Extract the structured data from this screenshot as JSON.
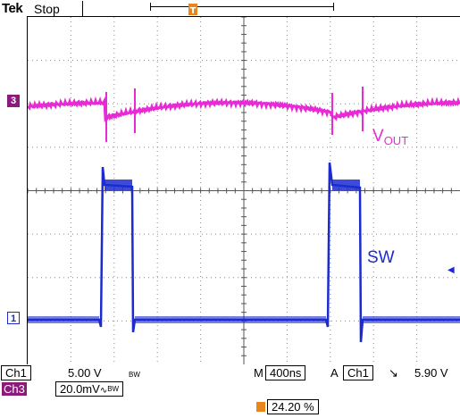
{
  "topbar": {
    "brand": "Tek",
    "state": "Stop",
    "trigger_marker": "T"
  },
  "traces": {
    "ch3_label": "V",
    "ch3_label_sub": "OUT",
    "ch1_label": "SW",
    "ch3_marker": "3",
    "ch1_marker": "1",
    "ch3_color": "#e82ad6",
    "ch1_color": "#1b2bd0"
  },
  "status": {
    "ch1_name": "Ch1",
    "ch1_scale": "5.00 V",
    "ch1_bw": "BW",
    "ch3_name": "Ch3",
    "ch3_scale": "20.0mV",
    "ch3_coupling": "∿",
    "ch3_bw": "BW",
    "timebase_prefix": "M",
    "timebase": "400ns",
    "acq_mode": "A",
    "trigger_source": "Ch1",
    "trigger_slope": "↘",
    "trigger_level": "5.90 V",
    "trigger_position": "24.20 %"
  },
  "colors": {
    "trigger_orange": "#e8861a",
    "ch3_badge": "#8b1a7a"
  }
}
